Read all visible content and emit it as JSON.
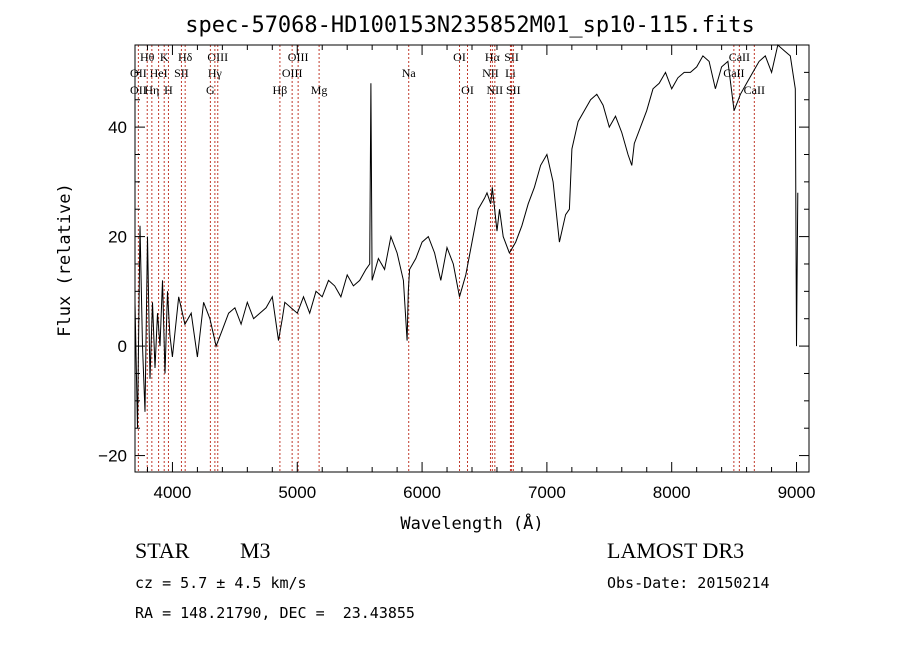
{
  "chart_data": {
    "type": "line",
    "title": "spec-57068-HD100153N235852M01_sp10-115.fits",
    "xlabel": "Wavelength (Å)",
    "ylabel": "Flux (relative)",
    "xlim": [
      3700,
      9100
    ],
    "ylim": [
      -23,
      55
    ],
    "xticks": [
      4000,
      5000,
      6000,
      7000,
      8000,
      9000
    ],
    "yticks": [
      -20,
      0,
      20,
      40
    ],
    "grid": false,
    "series": [
      {
        "name": "spectrum",
        "x": [
          3700,
          3720,
          3740,
          3760,
          3780,
          3800,
          3820,
          3840,
          3860,
          3880,
          3900,
          3920,
          3940,
          3960,
          3980,
          4000,
          4050,
          4100,
          4150,
          4200,
          4250,
          4300,
          4350,
          4400,
          4450,
          4500,
          4550,
          4600,
          4650,
          4700,
          4750,
          4800,
          4850,
          4880,
          4900,
          4950,
          5000,
          5050,
          5100,
          5150,
          5200,
          5250,
          5300,
          5350,
          5400,
          5450,
          5500,
          5550,
          5580,
          5590,
          5600,
          5650,
          5700,
          5750,
          5800,
          5850,
          5880,
          5890,
          5900,
          5950,
          6000,
          6050,
          6100,
          6150,
          6200,
          6250,
          6300,
          6350,
          6400,
          6450,
          6500,
          6520,
          6550,
          6563,
          6600,
          6620,
          6650,
          6700,
          6750,
          6800,
          6850,
          6900,
          6950,
          7000,
          7050,
          7100,
          7150,
          7180,
          7200,
          7250,
          7300,
          7350,
          7400,
          7450,
          7500,
          7550,
          7600,
          7650,
          7680,
          7700,
          7750,
          7800,
          7850,
          7900,
          7950,
          8000,
          8050,
          8100,
          8150,
          8200,
          8250,
          8300,
          8350,
          8400,
          8450,
          8500,
          8550,
          8600,
          8650,
          8700,
          8750,
          8800,
          8850,
          8900,
          8950,
          8990,
          9000,
          9010
        ],
        "y": [
          8,
          -15,
          22,
          0,
          -12,
          20,
          -6,
          8,
          -4,
          6,
          0,
          12,
          -5,
          10,
          2,
          -2,
          9,
          4,
          6,
          -2,
          8,
          5,
          0,
          3,
          6,
          7,
          4,
          8,
          5,
          6,
          7,
          9,
          1,
          5,
          8,
          7,
          6,
          9,
          6,
          10,
          9,
          12,
          11,
          9,
          13,
          11,
          12,
          14,
          15,
          48,
          12,
          16,
          14,
          20,
          17,
          12,
          1,
          10,
          14,
          16,
          19,
          20,
          17,
          12,
          18,
          15,
          9,
          13,
          19,
          25,
          27,
          28,
          26,
          29,
          21,
          25,
          20,
          17,
          19,
          22,
          26,
          29,
          33,
          35,
          30,
          19,
          24,
          25,
          36,
          41,
          43,
          45,
          46,
          44,
          40,
          42,
          39,
          35,
          33,
          37,
          40,
          43,
          47,
          48,
          50,
          47,
          49,
          50,
          50,
          51,
          53,
          52,
          47,
          51,
          52,
          43,
          46,
          48,
          50,
          52,
          53,
          50,
          55,
          54,
          53,
          47,
          0,
          28
        ]
      }
    ],
    "spectral_lines": [
      {
        "label": "Hθ",
        "wl": 3798,
        "row": 0
      },
      {
        "label": "K",
        "wl": 3934,
        "row": 0
      },
      {
        "label": "Hδ",
        "wl": 4102,
        "row": 0
      },
      {
        "label": "OIII",
        "wl": 4363,
        "row": 0
      },
      {
        "label": "OIII",
        "wl": 5007,
        "row": 0
      },
      {
        "label": "OI",
        "wl": 6300,
        "row": 0
      },
      {
        "label": "Hα",
        "wl": 6563,
        "row": 0
      },
      {
        "label": "SII",
        "wl": 6717,
        "row": 0
      },
      {
        "label": "CaII",
        "wl": 8542,
        "row": 0
      },
      {
        "label": "OII",
        "wl": 3727,
        "row": 1
      },
      {
        "label": "HeI",
        "wl": 3889,
        "row": 1
      },
      {
        "label": "SII",
        "wl": 4072,
        "row": 1
      },
      {
        "label": "Hγ",
        "wl": 4340,
        "row": 1
      },
      {
        "label": "OIII",
        "wl": 4959,
        "row": 1
      },
      {
        "label": "Na",
        "wl": 5893,
        "row": 1
      },
      {
        "label": "NII",
        "wl": 6548,
        "row": 1
      },
      {
        "label": "Li",
        "wl": 6708,
        "row": 1
      },
      {
        "label": "CaII",
        "wl": 8498,
        "row": 1
      },
      {
        "label": "OII",
        "wl": 3727,
        "row": 2
      },
      {
        "label": "Hη",
        "wl": 3835,
        "row": 2
      },
      {
        "label": "H",
        "wl": 3968,
        "row": 2
      },
      {
        "label": "G",
        "wl": 4304,
        "row": 2
      },
      {
        "label": "Hβ",
        "wl": 4861,
        "row": 2
      },
      {
        "label": "Mg",
        "wl": 5175,
        "row": 2
      },
      {
        "label": "OI",
        "wl": 6364,
        "row": 2
      },
      {
        "label": "NII",
        "wl": 6583,
        "row": 2
      },
      {
        "label": "SII",
        "wl": 6731,
        "row": 2
      },
      {
        "label": "CaII",
        "wl": 8662,
        "row": 2
      }
    ]
  },
  "info": {
    "object_class": "STAR",
    "subclass": "M3",
    "survey": "LAMOST DR3",
    "cz": "cz = 5.7 ± 4.5 km/s",
    "obs_date": "Obs-Date: 20150214",
    "coords": "RA = 148.21790, DEC =  23.43855"
  }
}
